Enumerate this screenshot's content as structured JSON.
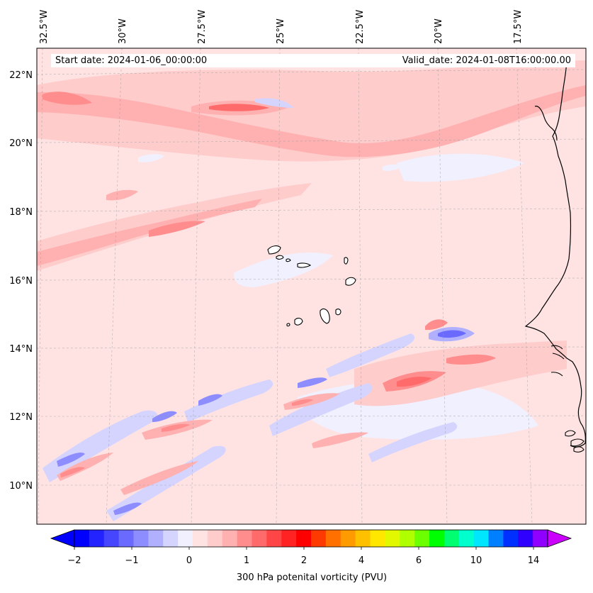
{
  "map": {
    "start_label": "Start date: 2024-01-06_00:00:00",
    "valid_label": "Valid_date: 2024-01-08T16:00:00.00",
    "lon_labels": [
      "32.5°W",
      "30°W",
      "27.5°W",
      "25°W",
      "22.5°W",
      "20°W",
      "17.5°W"
    ],
    "lat_labels": [
      "22°N",
      "20°N",
      "18°N",
      "16°N",
      "14°N",
      "12°N",
      "10°N"
    ],
    "colorbar": {
      "title": "300 hPa potenital vorticity (PVU)",
      "tick_labels": [
        "−2",
        "−1",
        "0",
        "1",
        "2",
        "4",
        "6",
        "10",
        "14"
      ],
      "colors": [
        "#0000ff",
        "#2323ff",
        "#4646ff",
        "#6a6aff",
        "#8d8dff",
        "#b0b0ff",
        "#d4d4ff",
        "#f0f0ff",
        "#ffe3e3",
        "#ffcccc",
        "#ffb0b0",
        "#ff8d8d",
        "#ff6a6a",
        "#ff4646",
        "#ff2323",
        "#ff0000",
        "#ff3a00",
        "#ff7000",
        "#ff9a00",
        "#ffc000",
        "#ffe700",
        "#e2f800",
        "#b0ff00",
        "#6cff00",
        "#00ff00",
        "#00ff70",
        "#00ffcc",
        "#00e6ff",
        "#0080ff",
        "#0030ff",
        "#3000ff",
        "#9000ff"
      ],
      "extend_low_color": "#0000ff",
      "extend_high_color": "#cc00ff"
    },
    "colors": {
      "background": "#ffe3e3",
      "light_pink": "#ffcccc",
      "pink": "#ffb0b0",
      "mid_red": "#ff8d8d",
      "red": "#ff6a6a",
      "light_blue": "#f0f0ff",
      "blue1": "#d4d4ff",
      "blue2": "#b0b0ff",
      "blue3": "#6a6aff",
      "coast": "#000000"
    }
  }
}
